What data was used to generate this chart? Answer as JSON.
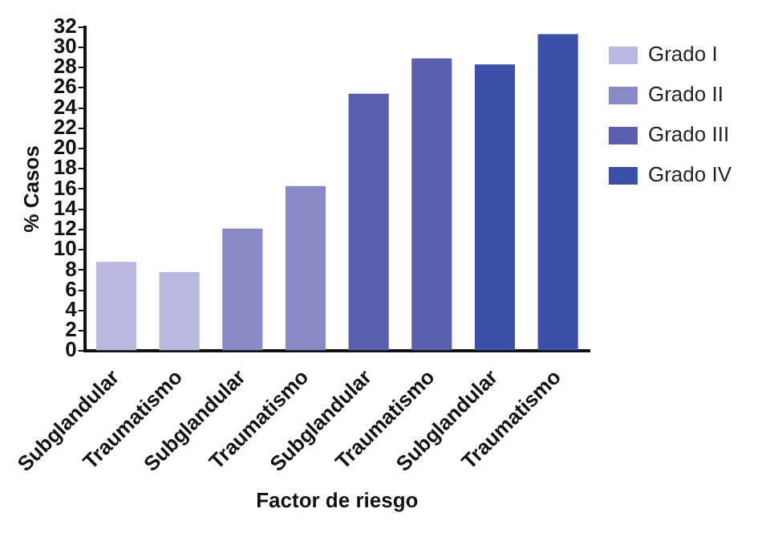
{
  "chart_data": {
    "type": "bar",
    "xlabel": "Factor de riesgo",
    "ylabel": "% Casos",
    "categories": [
      "Subglandular",
      "Traumatismo",
      "Subglandular",
      "Traumatismo",
      "Subglandular",
      "Traumatismo",
      "Subglandular",
      "Traumatismo"
    ],
    "series": [
      {
        "name": "Grado I",
        "color": "#b9b8de",
        "values": [
          8.8,
          7.8,
          null,
          null,
          null,
          null,
          null,
          null
        ]
      },
      {
        "name": "Grado II",
        "color": "#8a89c8",
        "values": [
          null,
          null,
          12.1,
          16.3,
          null,
          null,
          null,
          null
        ]
      },
      {
        "name": "Grado III",
        "color": "#5b5fb0",
        "values": [
          null,
          null,
          null,
          null,
          25.4,
          28.9,
          null,
          null
        ]
      },
      {
        "name": "Grado IV",
        "color": "#3c50a8",
        "values": [
          null,
          null,
          null,
          null,
          null,
          null,
          28.3,
          31.3
        ]
      }
    ],
    "ylim": [
      0,
      32
    ],
    "yticks": [
      0,
      2,
      4,
      6,
      8,
      10,
      12,
      14,
      16,
      18,
      20,
      22,
      24,
      26,
      28,
      30,
      32
    ],
    "grid": false,
    "legend": "top right"
  }
}
